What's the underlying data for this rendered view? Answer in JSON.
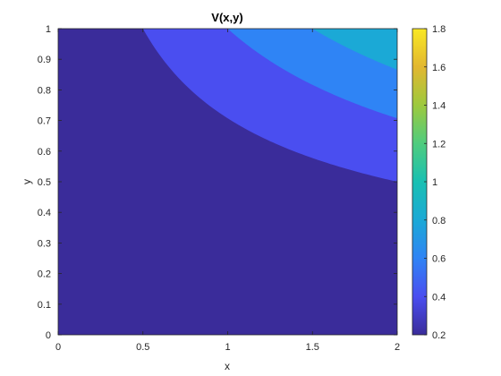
{
  "chart_data": {
    "type": "contour",
    "title": "V(x,y)",
    "xlabel": "x",
    "ylabel": "y",
    "xlim": [
      0,
      2
    ],
    "ylim": [
      0,
      1
    ],
    "x_ticks": [
      "0",
      "0.5",
      "1",
      "1.5",
      "2"
    ],
    "y_ticks": [
      "0",
      "0.1",
      "0.2",
      "0.3",
      "0.4",
      "0.5",
      "0.6",
      "0.7",
      "0.8",
      "0.9",
      "1"
    ],
    "colorbar": {
      "range": [
        0.2,
        1.8
      ],
      "ticks": [
        "0.2",
        "0.4",
        "0.6",
        "0.8",
        "1",
        "1.2",
        "1.4",
        "1.6",
        "1.8"
      ],
      "colormap": "parula"
    },
    "contour_levels": [
      0.2,
      0.4,
      0.6,
      0.8,
      1.0,
      1.2,
      1.4,
      1.6,
      1.8
    ],
    "filled": true,
    "grid": false
  },
  "colors": {
    "bands": [
      "#3a2c9a",
      "#4a4ef0",
      "#2f84f5",
      "#1ba9d6",
      "#19c0b2",
      "#4fcc7e",
      "#9dc93e",
      "#e2b730",
      "#f9e825"
    ]
  }
}
